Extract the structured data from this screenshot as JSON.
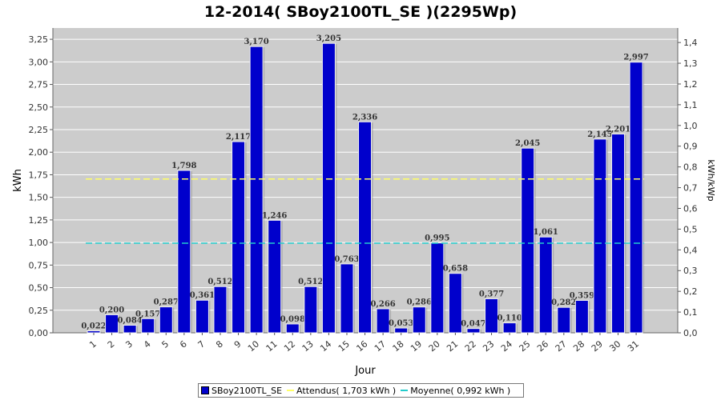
{
  "chart_data": {
    "type": "bar",
    "title": "12-2014( SBoy2100TL_SE )(2295Wp)",
    "xlabel": "Jour",
    "ylabel": "kWh",
    "y2label": "kWh/kWp",
    "ylim": [
      0,
      3.375
    ],
    "y2lim": [
      0,
      1.47
    ],
    "yticks": [
      "0,00",
      "0,25",
      "0,50",
      "0,75",
      "1,00",
      "1,25",
      "1,50",
      "1,75",
      "2,00",
      "2,25",
      "2,50",
      "2,75",
      "3,00",
      "3,25"
    ],
    "y2ticks": [
      "0,0",
      "0,1",
      "0,2",
      "0,3",
      "0,4",
      "0,5",
      "0,6",
      "0,7",
      "0,8",
      "0,9",
      "1,0",
      "1,1",
      "1,2",
      "1,3",
      "1,4"
    ],
    "categories": [
      "1",
      "2",
      "3",
      "4",
      "5",
      "6",
      "7",
      "8",
      "9",
      "10",
      "11",
      "12",
      "13",
      "14",
      "15",
      "16",
      "17",
      "18",
      "19",
      "20",
      "21",
      "22",
      "23",
      "24",
      "25",
      "26",
      "27",
      "28",
      "29",
      "30",
      "31"
    ],
    "series": [
      {
        "name": "SBoy2100TL_SE",
        "color": "#0000cc",
        "values": [
          0.022,
          0.2,
          0.084,
          0.157,
          0.287,
          1.798,
          0.361,
          0.512,
          2.117,
          3.17,
          1.246,
          0.098,
          0.512,
          3.205,
          0.763,
          2.336,
          0.266,
          0.053,
          0.286,
          0.995,
          0.658,
          0.047,
          0.377,
          0.11,
          2.045,
          1.061,
          0.282,
          0.359,
          2.145,
          2.201,
          2.997
        ],
        "labels": [
          "0,022",
          "0,200",
          "0,084",
          "0,157",
          "0,287",
          "1,798",
          "0,361",
          "0,512",
          "2,117",
          "3,170",
          "1,246",
          "0,098",
          "0,512",
          "3,205",
          "0,763",
          "2,336",
          "0,266",
          "0,053",
          "0,286",
          "0,995",
          "0,658",
          "0,047",
          "0,377",
          "0,110",
          "2,045",
          "1,061",
          "0,282",
          "0,359",
          "2,145",
          "2,201",
          "2,997"
        ]
      }
    ],
    "reference_lines": [
      {
        "name": "Attendus",
        "value": 1.703,
        "color": "#ffff66"
      },
      {
        "name": "Moyenne",
        "value": 0.992,
        "color": "#22cccc"
      }
    ],
    "legend_position": "bottom",
    "grid": true,
    "plot_background": "#cccccc"
  },
  "legend": {
    "series_label": "SBoy2100TL_SE",
    "expected_label": "Attendus( 1,703 kWh )",
    "average_label": "Moyenne( 0,992 kWh )"
  }
}
